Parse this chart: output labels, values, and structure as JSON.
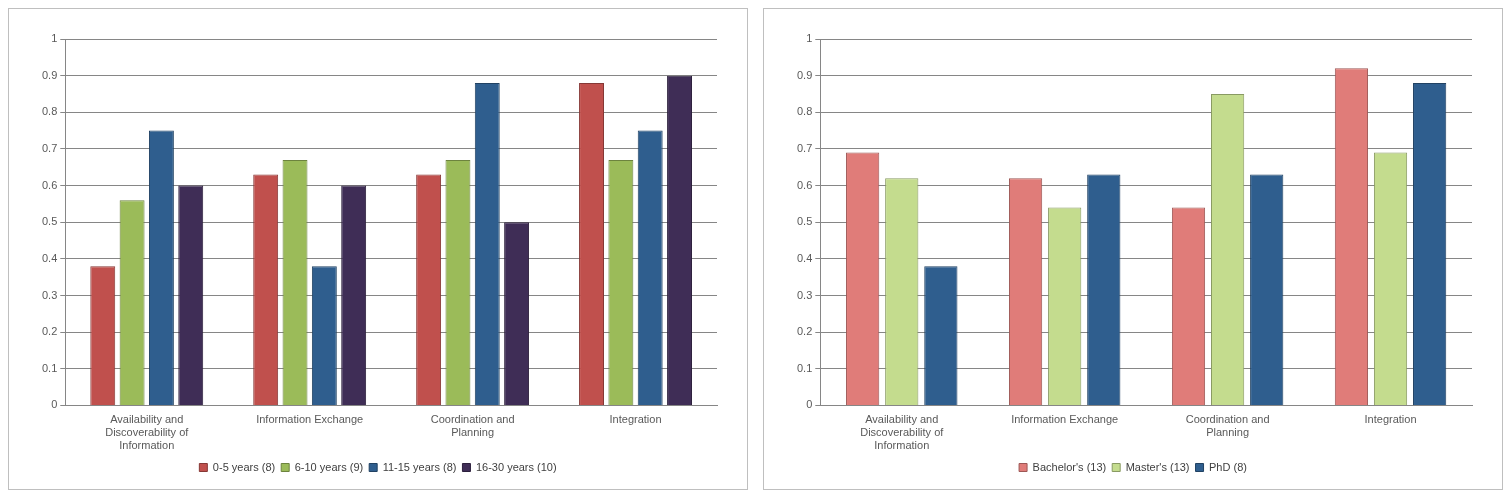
{
  "chart_data": [
    {
      "type": "bar",
      "categories": [
        "Availability and Discoverability of Information",
        "Information Exchange",
        "Coordination and Planning",
        "Integration"
      ],
      "ylim": [
        0,
        1
      ],
      "yticks": [
        0,
        0.1,
        0.2,
        0.3,
        0.4,
        0.5,
        0.6,
        0.7,
        0.8,
        0.9,
        1
      ],
      "grid": "y",
      "legend": "bottom",
      "series": [
        {
          "name": "0-5 years (8)",
          "color": "#c0504d",
          "values": [
            0.38,
            0.63,
            0.63,
            0.88
          ]
        },
        {
          "name": "6-10 years (9)",
          "color": "#9bbb59",
          "values": [
            0.56,
            0.67,
            0.67,
            0.67
          ]
        },
        {
          "name": "11-15 years (8)",
          "color": "#2f5e8e",
          "values": [
            0.75,
            0.38,
            0.88,
            0.75
          ]
        },
        {
          "name": "16-30 years (10)",
          "color": "#3f2d56",
          "values": [
            0.6,
            0.6,
            0.5,
            0.9
          ]
        }
      ]
    },
    {
      "type": "bar",
      "categories": [
        "Availability and Discoverability of Information",
        "Information Exchange",
        "Coordination and Planning",
        "Integration"
      ],
      "ylim": [
        0,
        1
      ],
      "yticks": [
        0,
        0.1,
        0.2,
        0.3,
        0.4,
        0.5,
        0.6,
        0.7,
        0.8,
        0.9,
        1
      ],
      "grid": "y",
      "legend": "bottom",
      "series": [
        {
          "name": "Bachelor's (13)",
          "color": "#e07c79",
          "values": [
            0.69,
            0.62,
            0.54,
            0.92
          ]
        },
        {
          "name": "Master's (13)",
          "color": "#c4dc8e",
          "values": [
            0.62,
            0.54,
            0.85,
            0.69
          ]
        },
        {
          "name": "PhD (8)",
          "color": "#2f5e8e",
          "values": [
            0.38,
            0.63,
            0.63,
            0.88
          ]
        }
      ]
    }
  ]
}
